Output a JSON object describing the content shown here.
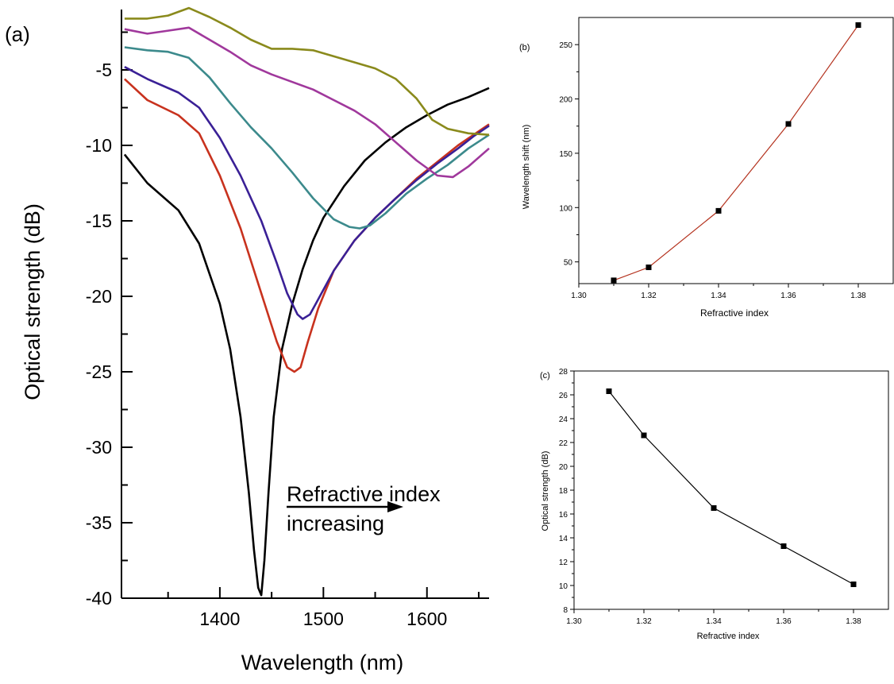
{
  "chart_data": [
    {
      "panel_label": "(a)",
      "type": "line",
      "xlabel": "Wavelength (nm)",
      "ylabel": "Optical strength (dB)",
      "xlim": [
        1305,
        1660
      ],
      "ylim": [
        -40,
        -1
      ],
      "xticks": [
        1400,
        1500,
        1600
      ],
      "yticks": [
        -5,
        -10,
        -15,
        -20,
        -25,
        -30,
        -35,
        -40
      ],
      "annotation": [
        "Refractive index",
        "increasing"
      ],
      "series": [
        {
          "color": "#000000",
          "x": [
            1308,
            1330,
            1360,
            1380,
            1400,
            1410,
            1420,
            1428,
            1433,
            1437,
            1440,
            1443,
            1447,
            1452,
            1460,
            1470,
            1480,
            1490,
            1500,
            1520,
            1540,
            1560,
            1580,
            1600,
            1620,
            1640,
            1660
          ],
          "y": [
            -10.6,
            -12.5,
            -14.3,
            -16.5,
            -20.5,
            -23.5,
            -28,
            -33,
            -36.8,
            -39.3,
            -39.8,
            -37.5,
            -33,
            -28,
            -23.5,
            -20.5,
            -18.2,
            -16.3,
            -14.8,
            -12.7,
            -11,
            -9.8,
            -8.8,
            -8,
            -7.3,
            -6.8,
            -6.2
          ]
        },
        {
          "color": "#c8321e",
          "x": [
            1308,
            1330,
            1360,
            1380,
            1400,
            1420,
            1440,
            1455,
            1465,
            1472,
            1478,
            1485,
            1495,
            1510,
            1530,
            1550,
            1570,
            1590,
            1610,
            1630,
            1645,
            1660
          ],
          "y": [
            -5.6,
            -7,
            -8,
            -9.2,
            -12,
            -15.5,
            -19.8,
            -23,
            -24.7,
            -25,
            -24.7,
            -23,
            -20.8,
            -18.3,
            -16.3,
            -14.8,
            -13.5,
            -12.2,
            -11.1,
            -10,
            -9.3,
            -8.6
          ]
        },
        {
          "color": "#3a2096",
          "x": [
            1308,
            1330,
            1360,
            1380,
            1400,
            1420,
            1440,
            1455,
            1465,
            1475,
            1480,
            1487,
            1495,
            1510,
            1530,
            1550,
            1570,
            1590,
            1610,
            1630,
            1645,
            1660
          ],
          "y": [
            -4.8,
            -5.6,
            -6.5,
            -7.5,
            -9.5,
            -12,
            -15,
            -17.8,
            -19.8,
            -21.2,
            -21.5,
            -21.2,
            -20.2,
            -18.3,
            -16.3,
            -14.8,
            -13.5,
            -12.3,
            -11.2,
            -10.2,
            -9.4,
            -8.7
          ]
        },
        {
          "color": "#3c8a8c",
          "x": [
            1308,
            1330,
            1350,
            1370,
            1390,
            1410,
            1430,
            1450,
            1470,
            1490,
            1510,
            1525,
            1535,
            1545,
            1560,
            1580,
            1600,
            1620,
            1640,
            1660
          ],
          "y": [
            -3.5,
            -3.7,
            -3.8,
            -4.2,
            -5.5,
            -7.2,
            -8.8,
            -10.2,
            -11.8,
            -13.5,
            -14.9,
            -15.4,
            -15.5,
            -15.3,
            -14.5,
            -13.2,
            -12.2,
            -11.3,
            -10.2,
            -9.3
          ]
        },
        {
          "color": "#a0389c",
          "x": [
            1308,
            1330,
            1350,
            1370,
            1390,
            1410,
            1430,
            1450,
            1470,
            1490,
            1510,
            1530,
            1550,
            1570,
            1590,
            1610,
            1625,
            1640,
            1660
          ],
          "y": [
            -2.3,
            -2.6,
            -2.4,
            -2.2,
            -3,
            -3.8,
            -4.7,
            -5.3,
            -5.8,
            -6.3,
            -7,
            -7.7,
            -8.6,
            -9.8,
            -11,
            -12,
            -12.1,
            -11.4,
            -10.2
          ]
        },
        {
          "color": "#8a8a1c",
          "x": [
            1308,
            1330,
            1350,
            1370,
            1390,
            1410,
            1430,
            1450,
            1470,
            1490,
            1510,
            1530,
            1550,
            1570,
            1590,
            1605,
            1620,
            1640,
            1660
          ],
          "y": [
            -1.6,
            -1.6,
            -1.4,
            -0.9,
            -1.5,
            -2.2,
            -3,
            -3.6,
            -3.6,
            -3.7,
            -4.1,
            -4.5,
            -4.9,
            -5.6,
            -6.9,
            -8.3,
            -8.9,
            -9.2,
            -9.3
          ]
        }
      ]
    },
    {
      "panel_label": "(b)",
      "type": "line",
      "xlabel": "Refractive index",
      "ylabel": "Wavelength shift (nm)",
      "xlim": [
        1.3,
        1.39
      ],
      "ylim": [
        30,
        275
      ],
      "xticks": [
        "1.30",
        "1.32",
        "1.34",
        "1.36",
        "1.38"
      ],
      "yticks": [
        "50",
        "100",
        "150",
        "200",
        "250"
      ],
      "line_color": "#b4321e",
      "x": [
        1.31,
        1.32,
        1.34,
        1.36,
        1.38
      ],
      "y": [
        33,
        45,
        97,
        177,
        268
      ]
    },
    {
      "panel_label": "(c)",
      "type": "line",
      "xlabel": "Refractive index",
      "ylabel": "Optical strength (dB)",
      "xlim": [
        1.3,
        1.39
      ],
      "ylim": [
        8,
        28
      ],
      "xticks": [
        "1.30",
        "1.32",
        "1.34",
        "1.36",
        "1.38"
      ],
      "yticks": [
        "8",
        "10",
        "12",
        "14",
        "16",
        "18",
        "20",
        "22",
        "24",
        "26",
        "28"
      ],
      "line_color": "#000000",
      "x": [
        1.31,
        1.32,
        1.34,
        1.36,
        1.38
      ],
      "y": [
        26.3,
        22.6,
        16.5,
        13.3,
        10.1
      ]
    }
  ]
}
